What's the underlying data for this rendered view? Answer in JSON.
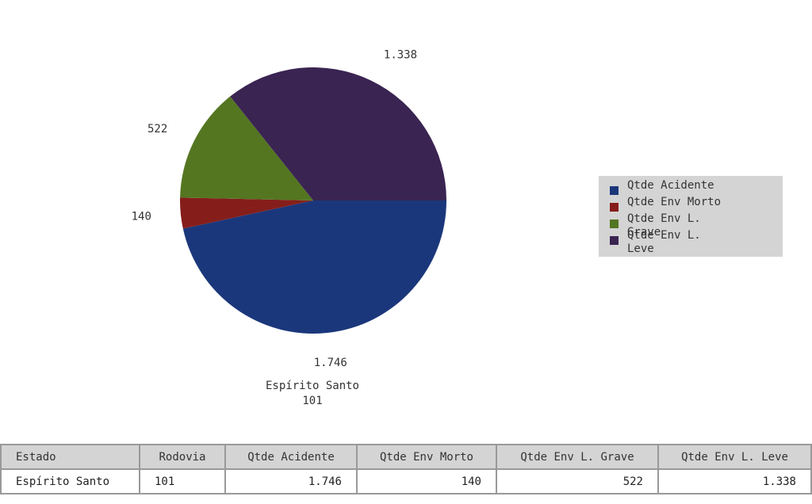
{
  "chart_data": {
    "type": "pie",
    "slices": [
      {
        "name": "Qtde Acidente",
        "value": 1746,
        "label": "1.746",
        "color": "#1b377b"
      },
      {
        "name": "Qtde Env Morto",
        "value": 140,
        "label": "140",
        "color": "#851e1b"
      },
      {
        "name": "Qtde Env L. Grave",
        "value": 522,
        "label": "522",
        "color": "#547621"
      },
      {
        "name": "Qtde Env L. Leve",
        "value": 1338,
        "label": "1.338",
        "color": "#3a2452"
      }
    ],
    "legend_placement": "right",
    "caption": [
      "Espírito Santo",
      "101"
    ]
  },
  "legend": {
    "items": [
      {
        "label": "Qtde Acidente",
        "color": "#1b377b"
      },
      {
        "label": "Qtde Env Morto",
        "color": "#851e1b"
      },
      {
        "label": "Qtde Env L. Grave",
        "color": "#547621"
      },
      {
        "label": "Qtde Env L. Leve",
        "color": "#3a2452"
      }
    ]
  },
  "table": {
    "headers": [
      "Estado",
      "Rodovia",
      "Qtde Acidente",
      "Qtde Env Morto",
      "Qtde Env L. Grave",
      "Qtde Env L. Leve"
    ],
    "rows": [
      [
        "Espírito Santo",
        "101",
        "1.746",
        "140",
        "522",
        "1.338"
      ]
    ]
  }
}
